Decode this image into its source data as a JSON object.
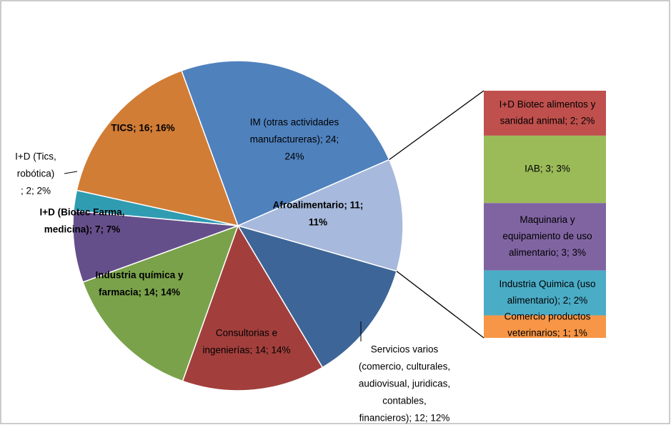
{
  "chart_data": {
    "type": "pie-of-bar",
    "labels": [
      [
        "IM (otras actividades",
        "manufactureras); 24;",
        "24%"
      ],
      [
        "Afroalimentario; 11;",
        "11%"
      ],
      [
        "Servicios varios",
        "(comercio, culturales,",
        "audiovisual, juridicas,",
        "contables,",
        "financieros); 12; 12%"
      ],
      [
        "Consultorias e",
        "ingenierías; 14; 14%"
      ],
      [
        "Industria química y",
        "farmacia; 14; 14%"
      ],
      [
        "I+D (Biotec Farma,",
        "medicina); 7; 7%"
      ],
      [
        "I+D (Tics,",
        "robótica)",
        "; 2; 2%"
      ],
      [
        "TICS; 16; 16%"
      ]
    ],
    "values": [
      24,
      11,
      12,
      14,
      14,
      7,
      2,
      16
    ],
    "colors": [
      "#4f81bd",
      "#a7b9dc",
      "#3d6597",
      "#a23f3c",
      "#7aa24b",
      "#654f8a",
      "#2f9cb2",
      "#d17d36"
    ],
    "bar_labels": [
      [
        "I+D Biotec alimentos y",
        "sanidad animal; 2; 2%"
      ],
      [
        "IAB; 3; 3%"
      ],
      [
        "Maquinaria y",
        "equipamiento de uso",
        "alimentario; 3; 3%"
      ],
      [
        "Industria Quimica (uso",
        "alimentario); 2; 2%"
      ],
      [
        "Comercio productos",
        "veterinarios; 1; 1%"
      ]
    ],
    "bar_values": [
      2,
      3,
      3,
      2,
      1
    ],
    "bar_colors": [
      "#c0504d",
      "#9bbb59",
      "#8064a2",
      "#4bacc6",
      "#f79646"
    ]
  }
}
